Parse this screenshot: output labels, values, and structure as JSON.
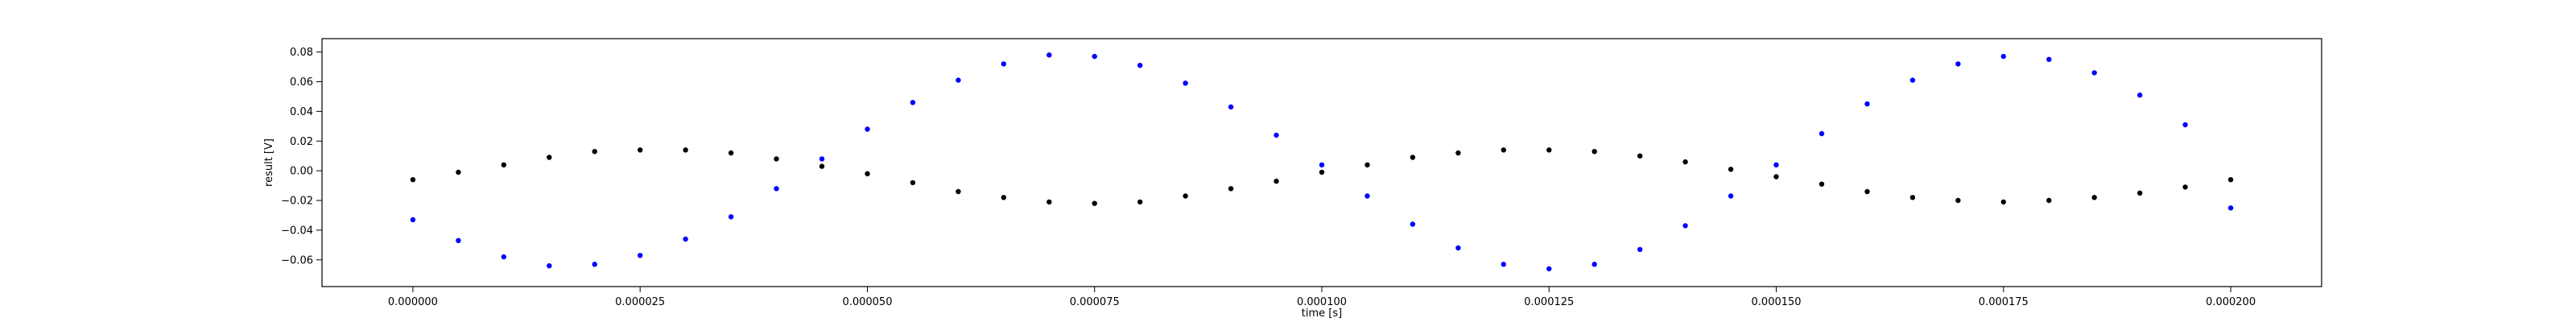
{
  "chart_data": {
    "type": "scatter",
    "title": "",
    "xlabel": "time [s]",
    "ylabel": "result [V]",
    "xlim": [
      -1e-05,
      0.00021
    ],
    "ylim": [
      -0.078,
      0.089
    ],
    "x_ticks": [
      0,
      2.5e-05,
      5e-05,
      7.5e-05,
      0.0001,
      0.000125,
      0.00015,
      0.000175,
      0.0002
    ],
    "x_tick_labels": [
      "0.000000",
      "0.000025",
      "0.000050",
      "0.000075",
      "0.000100",
      "0.000125",
      "0.000150",
      "0.000175",
      "0.000200"
    ],
    "y_ticks": [
      -0.06,
      -0.04,
      -0.02,
      0.0,
      0.02,
      0.04,
      0.06,
      0.08
    ],
    "y_tick_labels": [
      "−0.06",
      "−0.04",
      "−0.02",
      "0.00",
      "0.02",
      "0.04",
      "0.06",
      "0.08"
    ],
    "grid": false,
    "legend": "none",
    "series": [
      {
        "color": "#0000ff",
        "x": [
          0,
          5e-06,
          1e-05,
          1.5e-05,
          2e-05,
          2.5e-05,
          3e-05,
          3.5e-05,
          4e-05,
          4.5e-05,
          5e-05,
          5.5e-05,
          6e-05,
          6.5e-05,
          7e-05,
          7.5e-05,
          8e-05,
          8.5e-05,
          9e-05,
          9.5e-05,
          0.0001,
          0.000105,
          0.00011,
          0.000115,
          0.00012,
          0.000125,
          0.00013,
          0.000135,
          0.00014,
          0.000145,
          0.00015,
          0.000155,
          0.00016,
          0.000165,
          0.00017,
          0.000175,
          0.00018,
          0.000185,
          0.00019,
          0.000195,
          0.0002
        ],
        "y": [
          -0.033,
          -0.047,
          -0.058,
          -0.064,
          -0.063,
          -0.057,
          -0.046,
          -0.031,
          -0.012,
          0.008,
          0.028,
          0.046,
          0.061,
          0.072,
          0.078,
          0.077,
          0.071,
          0.059,
          0.043,
          0.024,
          0.004,
          -0.017,
          -0.036,
          -0.052,
          -0.063,
          -0.066,
          -0.063,
          -0.053,
          -0.037,
          -0.017,
          0.004,
          0.025,
          0.045,
          0.061,
          0.072,
          0.077,
          0.075,
          0.066,
          0.051,
          0.031,
          -0.025
        ]
      },
      {
        "color": "#000000",
        "x": [
          0,
          5e-06,
          1e-05,
          1.5e-05,
          2e-05,
          2.5e-05,
          3e-05,
          3.5e-05,
          4e-05,
          4.5e-05,
          5e-05,
          5.5e-05,
          6e-05,
          6.5e-05,
          7e-05,
          7.5e-05,
          8e-05,
          8.5e-05,
          9e-05,
          9.5e-05,
          0.0001,
          0.000105,
          0.00011,
          0.000115,
          0.00012,
          0.000125,
          0.00013,
          0.000135,
          0.00014,
          0.000145,
          0.00015,
          0.000155,
          0.00016,
          0.000165,
          0.00017,
          0.000175,
          0.00018,
          0.000185,
          0.00019,
          0.000195,
          0.0002
        ],
        "y": [
          -0.006,
          -0.001,
          0.004,
          0.009,
          0.013,
          0.014,
          0.014,
          0.012,
          0.008,
          0.003,
          -0.002,
          -0.008,
          -0.014,
          -0.018,
          -0.021,
          -0.022,
          -0.021,
          -0.017,
          -0.012,
          -0.007,
          -0.001,
          0.004,
          0.009,
          0.012,
          0.014,
          0.014,
          0.013,
          0.01,
          0.006,
          0.001,
          -0.004,
          -0.009,
          -0.014,
          -0.018,
          -0.02,
          -0.021,
          -0.02,
          -0.018,
          -0.015,
          -0.011,
          -0.006
        ]
      }
    ]
  }
}
